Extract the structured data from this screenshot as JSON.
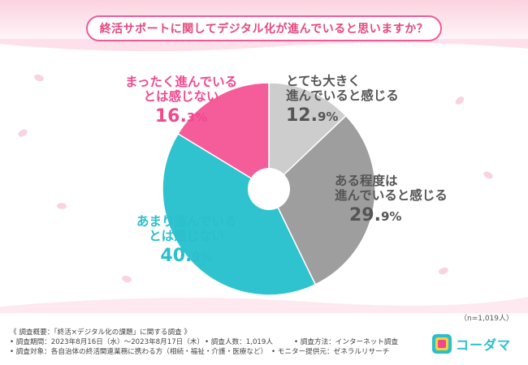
{
  "question": "終活サポートに関してデジタル化が進んでいると思いますか？",
  "sample_note": "（n=1,019人）",
  "chart_data": {
    "type": "pie",
    "categories": [
      "とても大きく進んでいると感じる",
      "ある程度は進んでいると感じる",
      "あまり進んでいるとは感じない",
      "まったく進んでいるとは感じない"
    ],
    "values": [
      12.9,
      29.9,
      40.9,
      16.3
    ],
    "unit": "%",
    "colors": [
      "#cdcdcd",
      "#9e9e9e",
      "#2fc3cf",
      "#f55c9a"
    ],
    "donut_hole": true
  },
  "labels": {
    "very": {
      "line1": "とても大きく",
      "line2": "進んでいると感じる",
      "pct_int": "12.",
      "pct_dec": "9%"
    },
    "some": {
      "line1": "ある程度は",
      "line2": "進んでいると感じる",
      "pct_int": "29.",
      "pct_dec": "9%"
    },
    "notmuch": {
      "line1": "あまり進んでいる",
      "line2": "とは感じない",
      "pct_int": "40.",
      "pct_dec": "9%"
    },
    "notatall": {
      "line1": "まったく進んでいる",
      "line2": "とは感じない",
      "pct_int": "16.",
      "pct_dec": "3%"
    }
  },
  "footer": {
    "overview": "《 調査概要：「終活×デジタル化の課題」に関する調査 》",
    "period": "• 調査期間：2023年8月16日（水）〜2023年8月17日（木）",
    "count": "• 調査人数：1,019人",
    "method": "• 調査方法：インターネット調査",
    "target": "• 調査対象：各自治体の終活関連業務に携わる方（相続・福祉・介護・医療など）",
    "provider": "• モニター提供元：ゼネラルリサーチ"
  },
  "logo": {
    "text": "コーダマ"
  }
}
